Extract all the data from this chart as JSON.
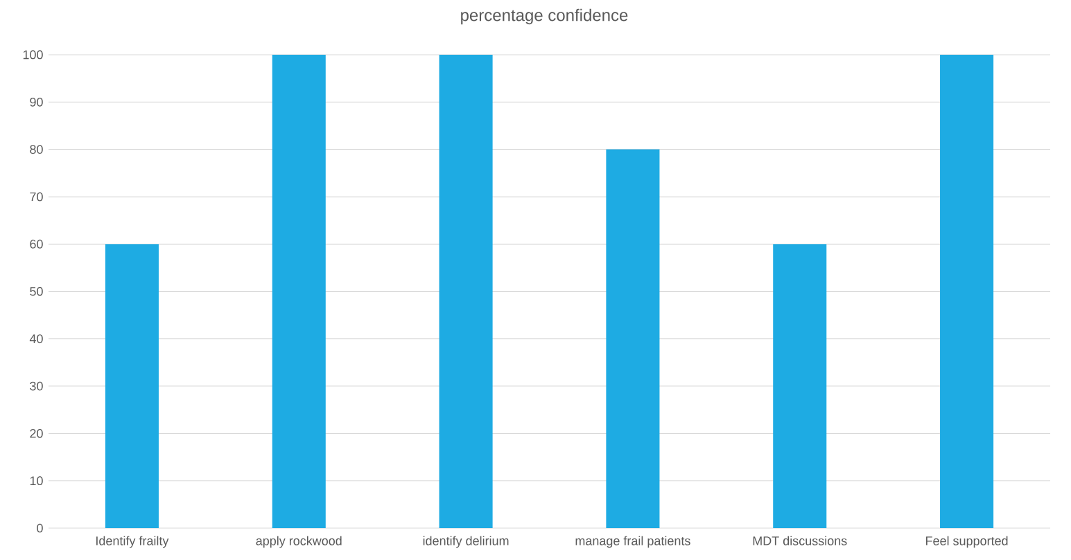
{
  "chart_data": {
    "type": "bar",
    "title": "percentage confidence",
    "categories": [
      "Identify frailty",
      "apply rockwood",
      "identify delirium",
      "manage frail patients",
      "MDT discussions",
      "Feel supported"
    ],
    "values": [
      60,
      100,
      100,
      80,
      60,
      100
    ],
    "color": "#1eabe3",
    "ylim": [
      0,
      100
    ],
    "yticks": [
      0,
      10,
      20,
      30,
      40,
      50,
      60,
      70,
      80,
      90,
      100
    ],
    "grid": "y"
  }
}
